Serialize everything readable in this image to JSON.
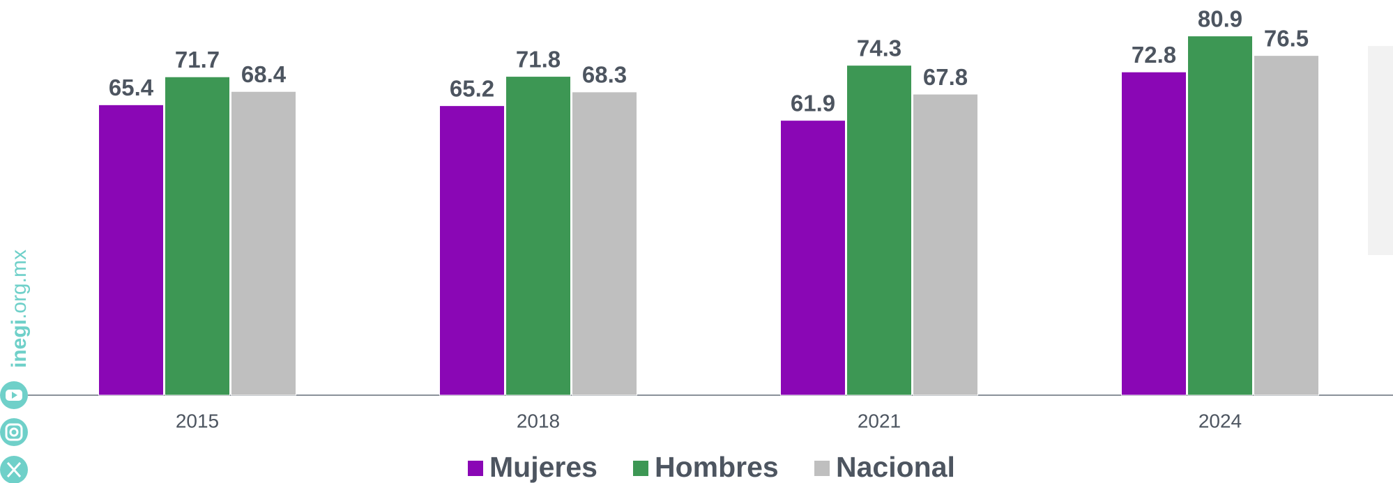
{
  "chart_data": {
    "type": "bar",
    "categories": [
      "2015",
      "2018",
      "2021",
      "2024"
    ],
    "series": [
      {
        "name": "Mujeres",
        "color": "#8a07b5",
        "values": [
          65.4,
          65.2,
          61.9,
          72.8
        ]
      },
      {
        "name": "Hombres",
        "color": "#3d9754",
        "values": [
          71.7,
          71.8,
          74.3,
          80.9
        ]
      },
      {
        "name": "Nacional",
        "color": "#bfbfbf",
        "values": [
          68.4,
          68.3,
          67.8,
          76.5
        ]
      }
    ],
    "ylim": [
      0,
      89
    ],
    "grid": false
  },
  "sidebar": {
    "site_bold": "inegi",
    "site_rest": ".org.mx"
  }
}
